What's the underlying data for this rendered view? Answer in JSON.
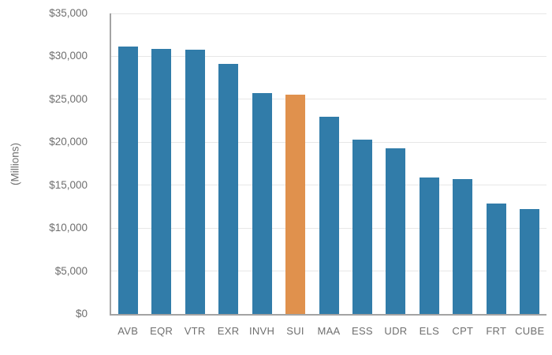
{
  "chart_data": {
    "type": "bar",
    "title": "",
    "xlabel": "",
    "ylabel": "(Millions)",
    "categories": [
      "AVB",
      "EQR",
      "VTR",
      "EXR",
      "INVH",
      "SUI",
      "MAA",
      "ESS",
      "UDR",
      "ELS",
      "CPT",
      "FRT",
      "CUBE"
    ],
    "values": [
      31100,
      30900,
      30800,
      29100,
      25700,
      25500,
      23000,
      20300,
      19300,
      15900,
      15700,
      12900,
      12200
    ],
    "highlighted_category": "SUI",
    "ylim": [
      0,
      35000
    ],
    "ytick_step": 5000,
    "ytick_labels": [
      "$0",
      "$5,000",
      "$10,000",
      "$15,000",
      "$20,000",
      "$25,000",
      "$30,000",
      "$35,000"
    ],
    "grid": true,
    "legend_position": "none",
    "colors": {
      "bar": "#317CA9",
      "highlight": "#E0914D",
      "gridline": "#E7E7E7",
      "axis": "#A3A3A3",
      "tick_text": "#6F6F6F"
    }
  }
}
